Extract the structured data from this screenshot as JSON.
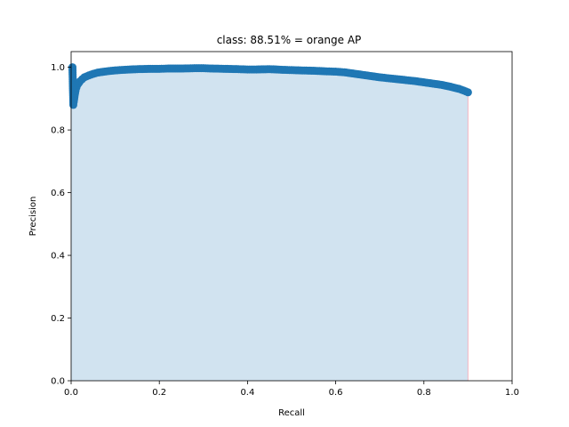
{
  "chart_data": {
    "type": "area",
    "title": "class: 88.51% = orange AP",
    "xlabel": "Recall",
    "ylabel": "Precision",
    "xlim": [
      0.0,
      1.0
    ],
    "ylim": [
      0.0,
      1.05
    ],
    "grid": false,
    "legend": "none",
    "xticks": [
      "0.0",
      "0.2",
      "0.4",
      "0.6",
      "0.8",
      "1.0"
    ],
    "yticks": [
      "0.0",
      "0.2",
      "0.4",
      "0.6",
      "0.8",
      "1.0"
    ],
    "xtick_values": [
      0.0,
      0.2,
      0.4,
      0.6,
      0.8,
      1.0
    ],
    "ytick_values": [
      0.0,
      0.2,
      0.4,
      0.6,
      0.8,
      1.0
    ],
    "colors": {
      "points": "#1f77b4",
      "fill": "#d1e3f0",
      "end_line": "#f4b6c2"
    },
    "end_recall": 0.9,
    "points": [
      [
        0.003,
        1.0
      ],
      [
        0.005,
        0.88
      ],
      [
        0.006,
        0.89
      ],
      [
        0.008,
        0.91
      ],
      [
        0.01,
        0.925
      ],
      [
        0.012,
        0.935
      ],
      [
        0.015,
        0.945
      ],
      [
        0.02,
        0.955
      ],
      [
        0.025,
        0.962
      ],
      [
        0.03,
        0.968
      ],
      [
        0.04,
        0.974
      ],
      [
        0.05,
        0.979
      ],
      [
        0.06,
        0.983
      ],
      [
        0.08,
        0.987
      ],
      [
        0.1,
        0.99
      ],
      [
        0.12,
        0.992
      ],
      [
        0.15,
        0.994
      ],
      [
        0.18,
        0.995
      ],
      [
        0.2,
        0.995
      ],
      [
        0.22,
        0.996
      ],
      [
        0.25,
        0.996
      ],
      [
        0.28,
        0.997
      ],
      [
        0.3,
        0.997
      ],
      [
        0.32,
        0.996
      ],
      [
        0.35,
        0.995
      ],
      [
        0.38,
        0.994
      ],
      [
        0.4,
        0.993
      ],
      [
        0.42,
        0.993
      ],
      [
        0.45,
        0.994
      ],
      [
        0.48,
        0.992
      ],
      [
        0.5,
        0.991
      ],
      [
        0.52,
        0.99
      ],
      [
        0.55,
        0.989
      ],
      [
        0.58,
        0.987
      ],
      [
        0.6,
        0.986
      ],
      [
        0.62,
        0.984
      ],
      [
        0.64,
        0.98
      ],
      [
        0.66,
        0.976
      ],
      [
        0.68,
        0.972
      ],
      [
        0.7,
        0.968
      ],
      [
        0.72,
        0.965
      ],
      [
        0.74,
        0.962
      ],
      [
        0.76,
        0.959
      ],
      [
        0.78,
        0.956
      ],
      [
        0.8,
        0.952
      ],
      [
        0.82,
        0.948
      ],
      [
        0.84,
        0.944
      ],
      [
        0.86,
        0.938
      ],
      [
        0.88,
        0.931
      ],
      [
        0.89,
        0.926
      ],
      [
        0.9,
        0.92
      ]
    ]
  }
}
